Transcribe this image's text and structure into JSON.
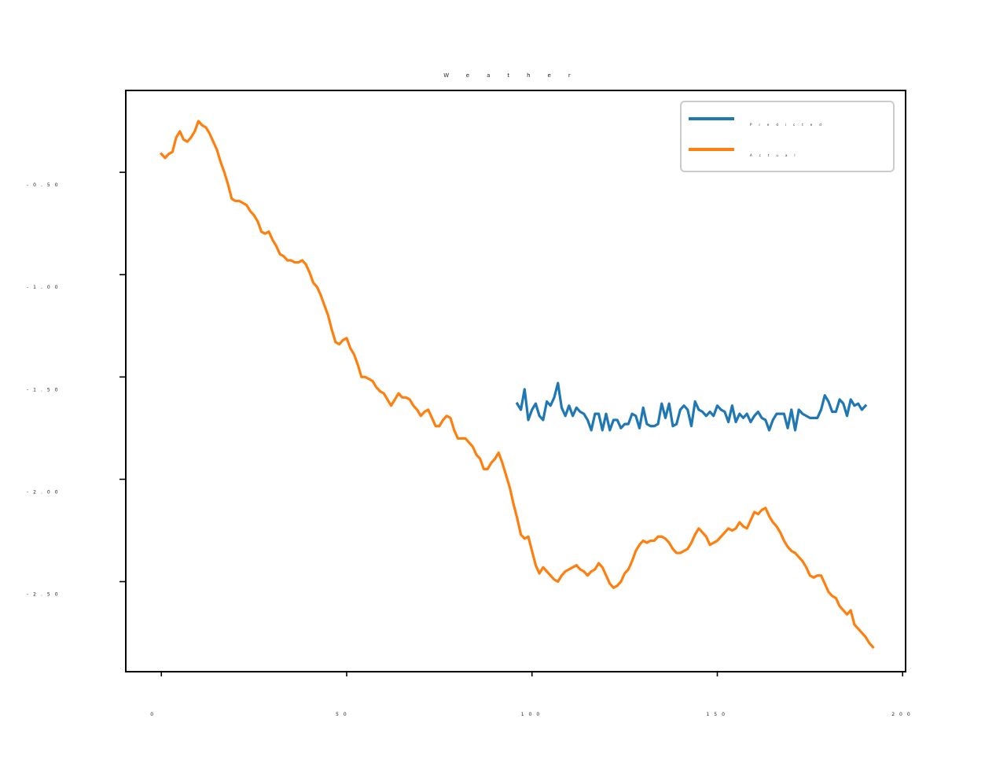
{
  "chart_data": {
    "type": "line",
    "title": "Weather",
    "xlabel": "",
    "ylabel": "",
    "xlim": [
      -9.6,
      200.8
    ],
    "ylim": [
      -2.94,
      -0.1
    ],
    "x_ticks": [
      0,
      50,
      100,
      150,
      200
    ],
    "x_tick_labels": [
      "0",
      "50",
      "100",
      "150",
      "200"
    ],
    "y_ticks": [
      -0.5,
      -1.0,
      -1.5,
      -2.0,
      -2.5
    ],
    "y_tick_labels": [
      "-0.50",
      "-1.00",
      "-1.50",
      "-2.00",
      "-2.50"
    ],
    "grid": false,
    "legend": {
      "placement": "top-right"
    },
    "colors": {
      "predicted": "#1f77b4",
      "actual": "#ff7f0e",
      "axes": "#000000"
    },
    "series": [
      {
        "name": "Predicted",
        "color": "#1f77b4",
        "x_start": 96,
        "values": [
          -1.63,
          -1.66,
          -1.56,
          -1.71,
          -1.66,
          -1.63,
          -1.69,
          -1.71,
          -1.62,
          -1.64,
          -1.6,
          -1.53,
          -1.65,
          -1.69,
          -1.64,
          -1.69,
          -1.65,
          -1.67,
          -1.68,
          -1.71,
          -1.76,
          -1.68,
          -1.68,
          -1.76,
          -1.68,
          -1.76,
          -1.71,
          -1.71,
          -1.75,
          -1.73,
          -1.73,
          -1.68,
          -1.69,
          -1.75,
          -1.65,
          -1.73,
          -1.74,
          -1.74,
          -1.73,
          -1.63,
          -1.7,
          -1.63,
          -1.74,
          -1.73,
          -1.66,
          -1.64,
          -1.66,
          -1.74,
          -1.62,
          -1.66,
          -1.67,
          -1.69,
          -1.67,
          -1.69,
          -1.64,
          -1.66,
          -1.67,
          -1.72,
          -1.64,
          -1.72,
          -1.68,
          -1.7,
          -1.68,
          -1.72,
          -1.69,
          -1.67,
          -1.7,
          -1.71,
          -1.76,
          -1.71,
          -1.68,
          -1.68,
          -1.68,
          -1.75,
          -1.66,
          -1.76,
          -1.66,
          -1.68,
          -1.69,
          -1.7,
          -1.7,
          -1.7,
          -1.66,
          -1.59,
          -1.62,
          -1.67,
          -1.67,
          -1.61,
          -1.63,
          -1.69,
          -1.61,
          -1.64,
          -1.63,
          -1.66,
          -1.64
        ]
      },
      {
        "name": "Actual",
        "color": "#ff7f0e",
        "x_start": 0,
        "values": [
          -0.41,
          -0.43,
          -0.41,
          -0.4,
          -0.33,
          -0.3,
          -0.34,
          -0.35,
          -0.33,
          -0.3,
          -0.25,
          -0.27,
          -0.28,
          -0.31,
          -0.35,
          -0.39,
          -0.45,
          -0.5,
          -0.56,
          -0.63,
          -0.64,
          -0.64,
          -0.65,
          -0.66,
          -0.69,
          -0.71,
          -0.74,
          -0.79,
          -0.8,
          -0.79,
          -0.83,
          -0.86,
          -0.9,
          -0.91,
          -0.93,
          -0.93,
          -0.94,
          -0.94,
          -0.93,
          -0.95,
          -0.99,
          -1.04,
          -1.06,
          -1.1,
          -1.15,
          -1.2,
          -1.27,
          -1.33,
          -1.34,
          -1.32,
          -1.31,
          -1.36,
          -1.39,
          -1.44,
          -1.5,
          -1.5,
          -1.51,
          -1.52,
          -1.55,
          -1.57,
          -1.58,
          -1.61,
          -1.64,
          -1.61,
          -1.58,
          -1.6,
          -1.6,
          -1.61,
          -1.64,
          -1.66,
          -1.69,
          -1.67,
          -1.66,
          -1.7,
          -1.74,
          -1.74,
          -1.71,
          -1.69,
          -1.7,
          -1.76,
          -1.8,
          -1.8,
          -1.8,
          -1.82,
          -1.84,
          -1.88,
          -1.9,
          -1.95,
          -1.95,
          -1.92,
          -1.9,
          -1.87,
          -1.92,
          -1.98,
          -2.04,
          -2.12,
          -2.19,
          -2.27,
          -2.29,
          -2.28,
          -2.35,
          -2.42,
          -2.46,
          -2.43,
          -2.45,
          -2.47,
          -2.49,
          -2.5,
          -2.47,
          -2.45,
          -2.44,
          -2.43,
          -2.42,
          -2.44,
          -2.45,
          -2.47,
          -2.45,
          -2.44,
          -2.41,
          -2.43,
          -2.47,
          -2.51,
          -2.53,
          -2.52,
          -2.5,
          -2.46,
          -2.44,
          -2.4,
          -2.35,
          -2.32,
          -2.3,
          -2.31,
          -2.3,
          -2.3,
          -2.28,
          -2.28,
          -2.29,
          -2.31,
          -2.34,
          -2.36,
          -2.36,
          -2.35,
          -2.34,
          -2.31,
          -2.27,
          -2.24,
          -2.26,
          -2.28,
          -2.32,
          -2.31,
          -2.3,
          -2.28,
          -2.26,
          -2.24,
          -2.25,
          -2.24,
          -2.21,
          -2.23,
          -2.24,
          -2.2,
          -2.16,
          -2.17,
          -2.15,
          -2.14,
          -2.18,
          -2.21,
          -2.23,
          -2.26,
          -2.3,
          -2.33,
          -2.35,
          -2.36,
          -2.38,
          -2.4,
          -2.43,
          -2.47,
          -2.48,
          -2.47,
          -2.47,
          -2.51,
          -2.55,
          -2.57,
          -2.58,
          -2.62,
          -2.64,
          -2.66,
          -2.64,
          -2.71,
          -2.73,
          -2.75,
          -2.77,
          -2.8,
          -2.82
        ]
      }
    ]
  }
}
